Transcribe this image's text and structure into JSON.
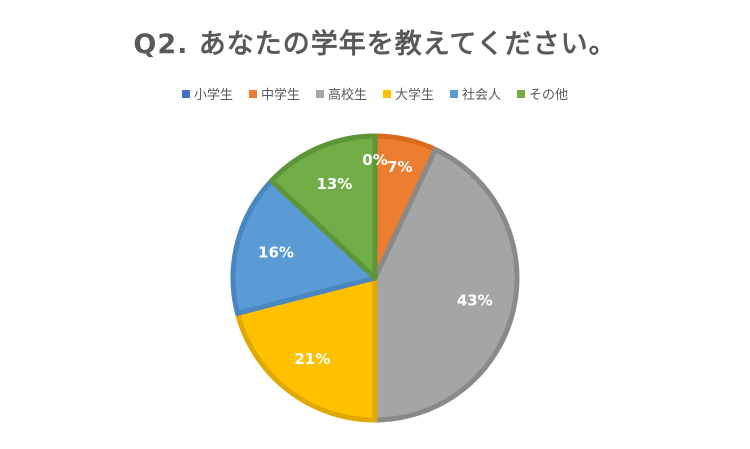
{
  "chart_data": {
    "type": "pie",
    "title": "Q2. あなたの学年を教えてください。",
    "legend_position": "top",
    "categories": [
      "小学生",
      "中学生",
      "高校生",
      "大学生",
      "社会人",
      "その他"
    ],
    "values": [
      0,
      7,
      43,
      21,
      16,
      13
    ],
    "data_labels": [
      "0%",
      "7%",
      "43%",
      "21%",
      "16%",
      "13%"
    ],
    "colors": [
      "#4472C4",
      "#ED7D31",
      "#A5A5A5",
      "#FFC000",
      "#5B9BD5",
      "#70AD47"
    ],
    "border_colors": [
      "#2F528F",
      "#D96A1F",
      "#8A8A8A",
      "#E0A800",
      "#4A86C0",
      "#5C9639"
    ]
  }
}
